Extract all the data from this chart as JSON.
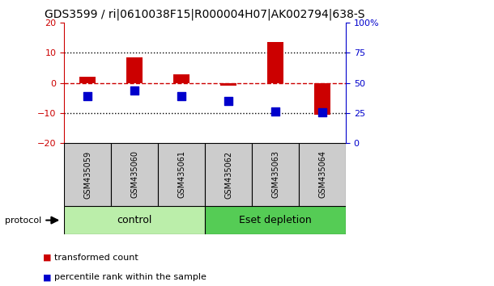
{
  "title": "GDS3599 / ri|0610038F15|R000004H07|AK002794|638-S",
  "categories": [
    "GSM435059",
    "GSM435060",
    "GSM435061",
    "GSM435062",
    "GSM435063",
    "GSM435064"
  ],
  "red_values": [
    2.0,
    8.5,
    3.0,
    -1.0,
    13.5,
    -10.5
  ],
  "blue_values": [
    -4.5,
    -2.5,
    -4.5,
    -6.0,
    -9.5,
    -9.8
  ],
  "ylim_left": [
    -20,
    20
  ],
  "ylim_right": [
    0,
    100
  ],
  "yticks_left": [
    -20,
    -10,
    0,
    10,
    20
  ],
  "yticks_right": [
    0,
    25,
    50,
    75,
    100
  ],
  "ytick_labels_right": [
    "0",
    "25",
    "50",
    "75",
    "100%"
  ],
  "hlines_dotted": [
    10,
    -10
  ],
  "red_color": "#cc0000",
  "blue_color": "#0000cc",
  "bar_width": 0.35,
  "blue_marker_size": 50,
  "groups": [
    {
      "label": "control",
      "indices": [
        0,
        1,
        2
      ],
      "color": "#bbeeaa"
    },
    {
      "label": "Eset depletion",
      "indices": [
        3,
        4,
        5
      ],
      "color": "#55cc55"
    }
  ],
  "cat_bg_color": "#cccccc",
  "protocol_label": "protocol",
  "legend_red": "transformed count",
  "legend_blue": "percentile rank within the sample",
  "title_fontsize": 10,
  "tick_fontsize": 8,
  "cat_fontsize": 7,
  "group_fontsize": 9,
  "legend_fontsize": 8,
  "bg_color": "#ffffff",
  "plot_bg_color": "#ffffff",
  "zero_line_color": "#cc0000",
  "zero_line_style": "--",
  "dotted_line_color": "#000000"
}
